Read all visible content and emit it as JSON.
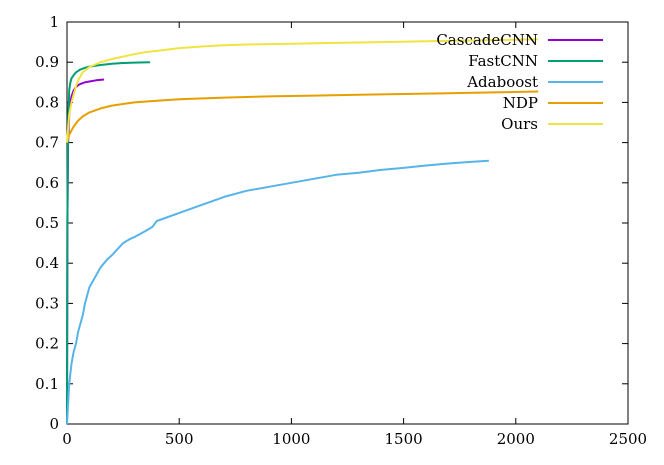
{
  "chart_data": {
    "type": "line",
    "title": "",
    "xlabel": "",
    "ylabel": "",
    "xlim": [
      0,
      2500
    ],
    "ylim": [
      0,
      1
    ],
    "xticks": [
      0,
      500,
      1000,
      1500,
      2000,
      2500
    ],
    "yticks": [
      0,
      0.1,
      0.2,
      0.3,
      0.4,
      0.5,
      0.6,
      0.7,
      0.8,
      0.9,
      1
    ],
    "grid": false,
    "legend_position": "top-right",
    "series": [
      {
        "name": "CascadeCNN",
        "color": "#9400d3",
        "x": [
          0,
          2,
          5,
          10,
          15,
          20,
          30,
          40,
          50,
          60,
          80,
          100,
          130,
          165
        ],
        "y": [
          0.0,
          0.5,
          0.7,
          0.77,
          0.8,
          0.815,
          0.83,
          0.838,
          0.843,
          0.846,
          0.85,
          0.852,
          0.855,
          0.857
        ]
      },
      {
        "name": "FastCNN",
        "color": "#009e73",
        "x": [
          0,
          2,
          5,
          10,
          15,
          20,
          30,
          40,
          60,
          80,
          100,
          150,
          200,
          250,
          300,
          370
        ],
        "y": [
          0.0,
          0.5,
          0.75,
          0.83,
          0.85,
          0.86,
          0.868,
          0.875,
          0.882,
          0.886,
          0.889,
          0.893,
          0.896,
          0.898,
          0.899,
          0.9
        ]
      },
      {
        "name": "Adaboost",
        "color": "#56b4e9",
        "x": [
          0,
          5,
          10,
          20,
          30,
          40,
          50,
          70,
          80,
          100,
          130,
          150,
          180,
          200,
          250,
          280,
          300,
          350,
          380,
          400,
          450,
          500,
          550,
          600,
          650,
          700,
          800,
          900,
          1000,
          1100,
          1200,
          1300,
          1400,
          1500,
          1600,
          1700,
          1800,
          1880
        ],
        "y": [
          0.0,
          0.05,
          0.1,
          0.15,
          0.18,
          0.2,
          0.23,
          0.27,
          0.3,
          0.34,
          0.37,
          0.39,
          0.41,
          0.42,
          0.45,
          0.46,
          0.465,
          0.48,
          0.49,
          0.505,
          0.515,
          0.525,
          0.535,
          0.545,
          0.555,
          0.565,
          0.58,
          0.59,
          0.6,
          0.61,
          0.62,
          0.625,
          0.632,
          0.637,
          0.643,
          0.648,
          0.652,
          0.655
        ]
      },
      {
        "name": "NDP",
        "color": "#e69f00",
        "x": [
          0,
          5,
          10,
          20,
          30,
          50,
          70,
          100,
          150,
          200,
          300,
          400,
          500,
          700,
          900,
          1100,
          1300,
          1500,
          1700,
          1900,
          2100
        ],
        "y": [
          0.7,
          0.71,
          0.72,
          0.73,
          0.74,
          0.755,
          0.765,
          0.775,
          0.785,
          0.792,
          0.8,
          0.804,
          0.808,
          0.812,
          0.815,
          0.817,
          0.819,
          0.821,
          0.823,
          0.825,
          0.827
        ]
      },
      {
        "name": "Ours",
        "color": "#f0e442",
        "x": [
          0,
          10,
          20,
          30,
          40,
          50,
          70,
          100,
          150,
          200,
          250,
          300,
          350,
          400,
          500,
          600,
          700,
          800,
          1000,
          1200,
          1400,
          1600,
          1800,
          2000,
          2100
        ],
        "y": [
          0.7,
          0.77,
          0.8,
          0.82,
          0.84,
          0.855,
          0.875,
          0.888,
          0.9,
          0.908,
          0.914,
          0.92,
          0.925,
          0.928,
          0.935,
          0.939,
          0.942,
          0.944,
          0.946,
          0.948,
          0.95,
          0.952,
          0.954,
          0.956,
          0.957
        ]
      }
    ]
  }
}
